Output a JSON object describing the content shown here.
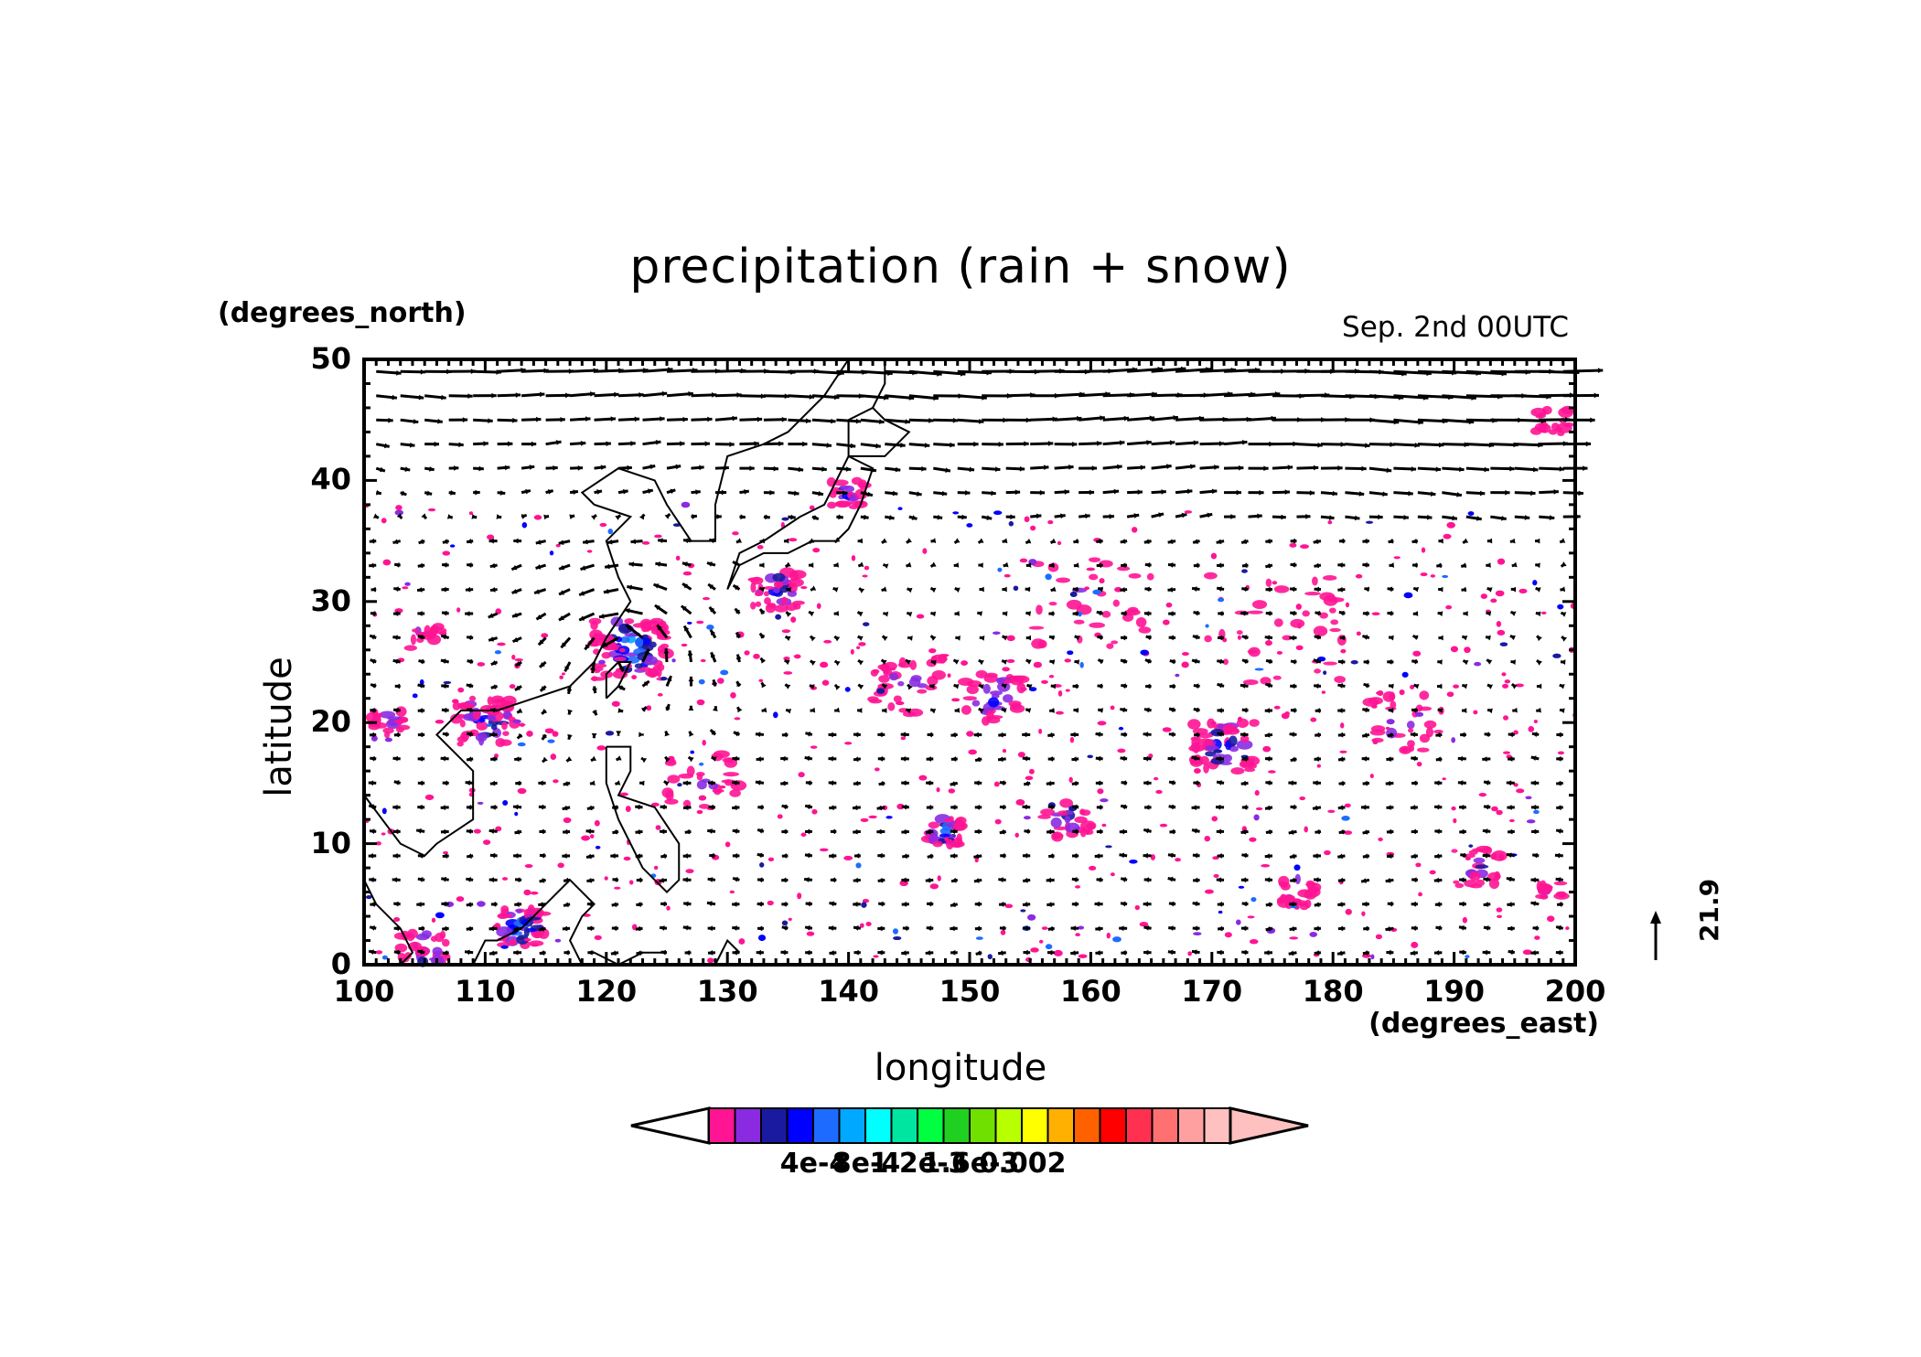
{
  "title": "precipitation (rain + snow)",
  "timestamp": "Sep. 2nd 00UTC",
  "x_axis": {
    "label": "longitude",
    "units": "(degrees_east)",
    "ticks": [
      "100",
      "110",
      "120",
      "130",
      "140",
      "150",
      "160",
      "170",
      "180",
      "190",
      "200"
    ]
  },
  "y_axis": {
    "label": "latitude",
    "units": "(degrees_north)",
    "ticks": [
      "0",
      "10",
      "20",
      "30",
      "40",
      "50"
    ]
  },
  "reference_vector": {
    "value": "21.9"
  },
  "colorbar": {
    "labels": [
      "4e-4",
      "8e-4",
      "1.2e-3",
      "1.6e-3",
      "0.002"
    ],
    "colors": [
      "#ff1493",
      "#8a2be2",
      "#1a1aa0",
      "#0000ff",
      "#1e6cff",
      "#00a8ff",
      "#00ffff",
      "#00e6a0",
      "#00ff40",
      "#20d020",
      "#70e000",
      "#b8ff00",
      "#ffff00",
      "#ffb000",
      "#ff6000",
      "#ff0000",
      "#ff3050",
      "#ff7070",
      "#ffa0a0",
      "#ffc0c0"
    ]
  },
  "chart_data": {
    "type": "map",
    "title": "precipitation (rain + snow)",
    "xlabel": "longitude",
    "ylabel": "latitude",
    "xlim": [
      100,
      200
    ],
    "ylim": [
      0,
      50
    ],
    "colorbar_levels": [
      0.0002,
      0.0004,
      0.0006,
      0.0008,
      0.001,
      0.0012,
      0.0014,
      0.0016,
      0.0018,
      0.002
    ],
    "features": [
      "wind vectors",
      "coastlines",
      "precipitation shading"
    ]
  }
}
